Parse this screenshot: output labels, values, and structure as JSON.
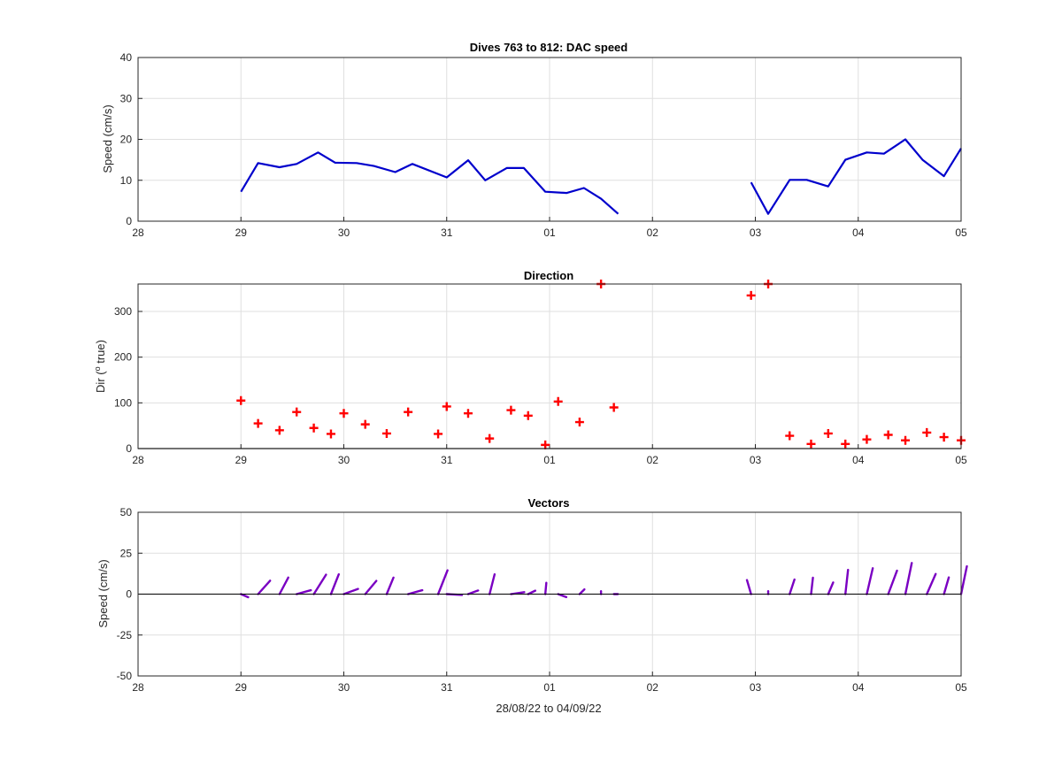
{
  "chart_data": [
    {
      "type": "line",
      "title": "Dives 763 to 812: DAC speed",
      "xlabel": "",
      "ylabel": "Speed (cm/s)",
      "xlim": [
        "2022-08-28",
        "2022-09-05"
      ],
      "ylim": [
        0,
        40
      ],
      "grid": true,
      "xticks": [
        "28",
        "29",
        "30",
        "31",
        "01",
        "02",
        "03",
        "04",
        "05"
      ],
      "yticks": [
        "0",
        "10",
        "20",
        "30",
        "40"
      ],
      "color": "#0000cc",
      "segments": [
        {
          "x": [
            "2022-08-29 00:00",
            "2022-08-29 04:00",
            "2022-08-29 09:00",
            "2022-08-29 13:00",
            "2022-08-29 18:00",
            "2022-08-29 22:00",
            "2022-08-30 03:00",
            "2022-08-30 07:00",
            "2022-08-30 12:00",
            "2022-08-30 16:00",
            "2022-08-31 00:00",
            "2022-08-31 05:00",
            "2022-08-31 09:00",
            "2022-08-31 14:00",
            "2022-08-31 18:00",
            "2022-08-31 23:00",
            "2022-09-01 04:00",
            "2022-09-01 08:00",
            "2022-09-01 12:00",
            "2022-09-01 16:00"
          ],
          "y": [
            7.2,
            14.2,
            13.2,
            14.0,
            16.8,
            14.3,
            14.2,
            13.5,
            12.0,
            14.0,
            10.7,
            14.9,
            10.0,
            13.0,
            13.0,
            7.2,
            6.9,
            8.1,
            5.5,
            1.8
          ]
        },
        {
          "x": [
            "2022-09-02 23:00",
            "2022-09-03 03:00",
            "2022-09-03 08:00",
            "2022-09-03 12:00",
            "2022-09-03 17:00",
            "2022-09-03 21:00",
            "2022-09-04 02:00",
            "2022-09-04 06:00",
            "2022-09-04 11:00",
            "2022-09-04 15:00",
            "2022-09-04 20:00",
            "2022-09-05 00:00"
          ],
          "y": [
            9.5,
            1.8,
            10.1,
            10.1,
            8.5,
            15.0,
            16.8,
            16.5,
            20.0,
            15.0,
            11.0,
            17.8
          ]
        }
      ]
    },
    {
      "type": "scatter",
      "title": "Direction",
      "xlabel": "",
      "ylabel_main": "Dir (",
      "ylabel_sup": "o",
      "ylabel_end": " true)",
      "xlim": [
        "2022-08-28",
        "2022-09-05"
      ],
      "ylim": [
        0,
        360
      ],
      "grid": true,
      "xticks": [
        "28",
        "29",
        "30",
        "31",
        "01",
        "02",
        "03",
        "04",
        "05"
      ],
      "yticks": [
        "0",
        "100",
        "200",
        "300"
      ],
      "color": "#ff0000",
      "marker": "+",
      "x": [
        "2022-08-29 00:00",
        "2022-08-29 04:00",
        "2022-08-29 09:00",
        "2022-08-29 13:00",
        "2022-08-29 17:00",
        "2022-08-29 21:00",
        "2022-08-30 00:00",
        "2022-08-30 05:00",
        "2022-08-30 10:00",
        "2022-08-30 15:00",
        "2022-08-30 22:00",
        "2022-08-31 00:00",
        "2022-08-31 05:00",
        "2022-08-31 10:00",
        "2022-08-31 15:00",
        "2022-08-31 19:00",
        "2022-08-31 23:00",
        "2022-09-01 02:00",
        "2022-09-01 07:00",
        "2022-09-01 12:00",
        "2022-09-01 15:00",
        "2022-09-02 23:00",
        "2022-09-03 03:00",
        "2022-09-03 08:00",
        "2022-09-03 13:00",
        "2022-09-03 17:00",
        "2022-09-03 21:00",
        "2022-09-04 02:00",
        "2022-09-04 07:00",
        "2022-09-04 11:00",
        "2022-09-04 16:00",
        "2022-09-04 20:00",
        "2022-09-05 00:00"
      ],
      "y": [
        105,
        55,
        40,
        80,
        45,
        32,
        77,
        53,
        33,
        80,
        32,
        92,
        77,
        22,
        84,
        72,
        8,
        103,
        58,
        360,
        90,
        335,
        360,
        28,
        10,
        33,
        10,
        20,
        30,
        18,
        35,
        25,
        18
      ]
    },
    {
      "type": "vector",
      "title": "Vectors",
      "xlabel": "28/08/22 to 04/09/22",
      "ylabel": "Speed (cm/s)",
      "xlim": [
        "2022-08-28",
        "2022-09-05"
      ],
      "ylim": [
        -50,
        50
      ],
      "grid": true,
      "xticks": [
        "28",
        "29",
        "30",
        "31",
        "01",
        "02",
        "03",
        "04",
        "05"
      ],
      "yticks": [
        "-50",
        "-25",
        "0",
        "25",
        "50"
      ],
      "color": "#7a00c2",
      "x": [
        "2022-08-29 00:00",
        "2022-08-29 04:00",
        "2022-08-29 09:00",
        "2022-08-29 13:00",
        "2022-08-29 17:00",
        "2022-08-29 21:00",
        "2022-08-30 00:00",
        "2022-08-30 05:00",
        "2022-08-30 10:00",
        "2022-08-30 15:00",
        "2022-08-30 22:00",
        "2022-08-31 00:00",
        "2022-08-31 05:00",
        "2022-08-31 10:00",
        "2022-08-31 15:00",
        "2022-08-31 19:00",
        "2022-08-31 23:00",
        "2022-09-01 02:00",
        "2022-09-01 07:00",
        "2022-09-01 12:00",
        "2022-09-01 15:00",
        "2022-09-02 23:00",
        "2022-09-03 03:00",
        "2022-09-03 08:00",
        "2022-09-03 13:00",
        "2022-09-03 17:00",
        "2022-09-03 21:00",
        "2022-09-04 02:00",
        "2022-09-04 07:00",
        "2022-09-04 11:00",
        "2022-09-04 16:00",
        "2022-09-04 20:00",
        "2022-09-05 00:00"
      ],
      "u": [
        7.0,
        11.7,
        8.5,
        13.8,
        11.9,
        7.6,
        13.8,
        10.8,
        6.6,
        13.8,
        9.1,
        14.9,
        9.7,
        4.9,
        12.9,
        6.9,
        1.0,
        7.9,
        4.7,
        0.0,
        3.8,
        -4.0,
        0.0,
        4.7,
        1.8,
        4.8,
        2.6,
        5.8,
        8.5,
        6.2,
        8.6,
        4.7,
        5.6
      ],
      "v": [
        -1.9,
        8.2,
        10.1,
        2.4,
        11.9,
        12.1,
        3.2,
        8.1,
        10.1,
        2.4,
        14.5,
        -0.5,
        2.2,
        12.1,
        1.2,
        2.1,
        6.9,
        -1.8,
        2.9,
        1.8,
        0.0,
        8.6,
        1.8,
        8.9,
        10.0,
        7.1,
        14.8,
        15.8,
        14.3,
        19.0,
        12.3,
        10.2,
        17.0
      ]
    }
  ]
}
